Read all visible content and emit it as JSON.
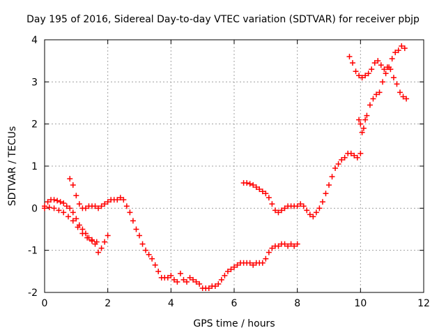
{
  "chart_data": {
    "type": "scatter",
    "title": "Day 195 of 2016, Sidereal Day-to-day VTEC variation (SDTVAR) for receiver pbjp",
    "xlabel": "GPS time / hours",
    "ylabel": "SDTVAR / TECUs",
    "xlim": [
      0,
      12
    ],
    "ylim": [
      -2,
      4
    ],
    "xticks": [
      "0",
      "2",
      "4",
      "6",
      "8",
      "10",
      "12"
    ],
    "yticks": [
      "-2",
      "-1",
      "0",
      "1",
      "2",
      "3",
      "4"
    ],
    "grid": true,
    "marker": "+",
    "color": "#ff0000",
    "series": [
      {
        "x": [
          0.0,
          0.1,
          0.2,
          0.3,
          0.4,
          0.5,
          0.6,
          0.7,
          0.8,
          0.9,
          1.0,
          1.1,
          1.2,
          1.3,
          1.4,
          1.5,
          1.6,
          1.7,
          1.8,
          1.9,
          2.0
        ],
        "y": [
          0.05,
          0.15,
          0.2,
          0.2,
          0.18,
          0.15,
          0.12,
          0.05,
          0.0,
          -0.1,
          -0.25,
          -0.4,
          -0.5,
          -0.6,
          -0.7,
          -0.75,
          -0.85,
          -1.05,
          -0.95,
          -0.8,
          -0.65
        ]
      },
      {
        "x": [
          0.0,
          0.15,
          0.3,
          0.45,
          0.6,
          0.75,
          0.9,
          1.05,
          1.2,
          1.35,
          1.5,
          1.65
        ],
        "y": [
          0.0,
          0.02,
          0.0,
          -0.05,
          -0.1,
          -0.2,
          -0.3,
          -0.45,
          -0.6,
          -0.7,
          -0.78,
          -0.8
        ]
      },
      {
        "x": [
          0.8,
          0.9,
          1.0,
          1.1,
          1.2,
          1.3,
          1.4,
          1.5,
          1.6,
          1.7,
          1.8,
          1.9,
          2.0,
          2.1,
          2.2,
          2.3,
          2.4,
          2.5,
          2.6,
          2.7,
          2.8,
          2.9,
          3.0,
          3.1,
          3.2,
          3.3,
          3.4,
          3.5,
          3.6,
          3.7,
          3.8,
          3.9,
          4.0,
          4.1,
          4.2,
          4.3,
          4.4,
          4.5,
          4.6,
          4.7,
          4.8,
          4.9,
          5.0,
          5.1,
          5.2,
          5.3,
          5.4,
          5.5,
          5.6,
          5.7,
          5.8,
          5.9,
          6.0,
          6.1,
          6.2,
          6.3,
          6.4,
          6.5,
          6.6,
          6.7,
          6.8,
          6.9,
          7.0,
          7.1,
          7.2,
          7.3,
          7.4,
          7.5,
          7.6,
          7.7,
          7.8,
          7.9,
          8.0
        ],
        "y": [
          0.7,
          0.55,
          0.3,
          0.1,
          0.0,
          0.0,
          0.05,
          0.05,
          0.05,
          0.0,
          0.05,
          0.1,
          0.15,
          0.2,
          0.2,
          0.2,
          0.25,
          0.2,
          0.05,
          -0.1,
          -0.3,
          -0.5,
          -0.65,
          -0.85,
          -1.0,
          -1.1,
          -1.2,
          -1.35,
          -1.5,
          -1.65,
          -1.65,
          -1.65,
          -1.6,
          -1.7,
          -1.75,
          -1.55,
          -1.7,
          -1.75,
          -1.65,
          -1.7,
          -1.75,
          -1.8,
          -1.9,
          -1.9,
          -1.9,
          -1.85,
          -1.85,
          -1.8,
          -1.7,
          -1.6,
          -1.5,
          -1.45,
          -1.4,
          -1.35,
          -1.3,
          -1.3,
          -1.3,
          -1.3,
          -1.35,
          -1.3,
          -1.3,
          -1.3,
          -1.2,
          -1.05,
          -0.95,
          -0.9,
          -0.9,
          -0.85,
          -0.85,
          -0.9,
          -0.85,
          -0.9,
          -0.85
        ]
      },
      {
        "x": [
          6.3,
          6.4,
          6.5,
          6.6,
          6.7,
          6.8,
          6.9,
          7.0,
          7.1,
          7.2,
          7.3,
          7.4,
          7.5,
          7.6,
          7.7,
          7.8,
          7.9,
          8.0,
          8.1,
          8.2,
          8.3,
          8.4,
          8.5,
          8.6,
          8.7,
          8.8,
          8.9,
          9.0,
          9.1,
          9.2,
          9.3,
          9.4,
          9.5,
          9.6,
          9.7,
          9.8,
          9.9,
          10.0
        ],
        "y": [
          0.6,
          0.6,
          0.58,
          0.55,
          0.5,
          0.45,
          0.4,
          0.35,
          0.25,
          0.1,
          -0.05,
          -0.1,
          -0.05,
          0.0,
          0.05,
          0.05,
          0.05,
          0.05,
          0.1,
          0.05,
          -0.05,
          -0.15,
          -0.2,
          -0.1,
          0.0,
          0.15,
          0.35,
          0.55,
          0.75,
          0.95,
          1.05,
          1.15,
          1.2,
          1.3,
          1.3,
          1.25,
          1.2,
          1.3
        ]
      },
      {
        "x": [
          9.65,
          9.75,
          9.85,
          9.95,
          10.05,
          10.15,
          10.25,
          10.35,
          10.45,
          10.55,
          10.65,
          10.75,
          10.85,
          10.95,
          11.05,
          11.15,
          11.25,
          11.35,
          11.45
        ],
        "y": [
          3.6,
          3.45,
          3.25,
          3.15,
          3.1,
          3.15,
          3.2,
          3.3,
          3.45,
          3.5,
          3.4,
          3.3,
          3.35,
          3.3,
          3.1,
          2.95,
          2.75,
          2.65,
          2.6
        ]
      },
      {
        "x": [
          9.95,
          10.0,
          10.05,
          10.1,
          10.15,
          10.2,
          10.3,
          10.4,
          10.5,
          10.6,
          10.7,
          10.8,
          10.9,
          11.0,
          11.1,
          11.2,
          11.3,
          11.4
        ],
        "y": [
          2.1,
          2.0,
          1.8,
          1.9,
          2.1,
          2.2,
          2.45,
          2.6,
          2.7,
          2.75,
          3.0,
          3.2,
          3.35,
          3.55,
          3.7,
          3.75,
          3.85,
          3.8
        ]
      }
    ]
  }
}
